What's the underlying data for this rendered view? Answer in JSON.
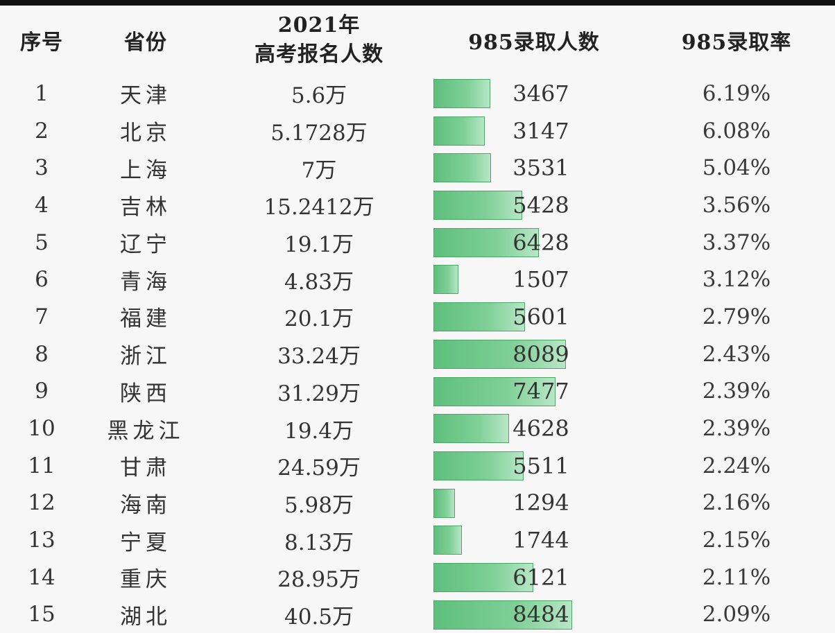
{
  "header": {
    "index": "序号",
    "province": "省份",
    "registrations_line1": "2021年",
    "registrations_line2": "高考报名人数",
    "admitted": "985录取人数",
    "rate": "985录取率"
  },
  "colors": {
    "bar_fill": "#7fd097",
    "bar_border": "#4aa866",
    "top_rule": "#111111"
  },
  "table_data": {
    "bar_max": 8484,
    "rows": [
      {
        "index": "1",
        "province": "天津",
        "registrations": "5.6万",
        "admitted": "3467",
        "admitted_value": 3467,
        "rate": "6.19%"
      },
      {
        "index": "2",
        "province": "北京",
        "registrations": "5.1728万",
        "admitted": "3147",
        "admitted_value": 3147,
        "rate": "6.08%"
      },
      {
        "index": "3",
        "province": "上海",
        "registrations": "7万",
        "admitted": "3531",
        "admitted_value": 3531,
        "rate": "5.04%"
      },
      {
        "index": "4",
        "province": "吉林",
        "registrations": "15.2412万",
        "admitted": "5428",
        "admitted_value": 5428,
        "rate": "3.56%"
      },
      {
        "index": "5",
        "province": "辽宁",
        "registrations": "19.1万",
        "admitted": "6428",
        "admitted_value": 6428,
        "rate": "3.37%"
      },
      {
        "index": "6",
        "province": "青海",
        "registrations": "4.83万",
        "admitted": "1507",
        "admitted_value": 1507,
        "rate": "3.12%"
      },
      {
        "index": "7",
        "province": "福建",
        "registrations": "20.1万",
        "admitted": "5601",
        "admitted_value": 5601,
        "rate": "2.79%"
      },
      {
        "index": "8",
        "province": "浙江",
        "registrations": "33.24万",
        "admitted": "8089",
        "admitted_value": 8089,
        "rate": "2.43%"
      },
      {
        "index": "9",
        "province": "陕西",
        "registrations": "31.29万",
        "admitted": "7477",
        "admitted_value": 7477,
        "rate": "2.39%"
      },
      {
        "index": "10",
        "province": "黑龙江",
        "registrations": "19.4万",
        "admitted": "4628",
        "admitted_value": 4628,
        "rate": "2.39%"
      },
      {
        "index": "11",
        "province": "甘肃",
        "registrations": "24.59万",
        "admitted": "5511",
        "admitted_value": 5511,
        "rate": "2.24%"
      },
      {
        "index": "12",
        "province": "海南",
        "registrations": "5.98万",
        "admitted": "1294",
        "admitted_value": 1294,
        "rate": "2.16%"
      },
      {
        "index": "13",
        "province": "宁夏",
        "registrations": "8.13万",
        "admitted": "1744",
        "admitted_value": 1744,
        "rate": "2.15%"
      },
      {
        "index": "14",
        "province": "重庆",
        "registrations": "28.95万",
        "admitted": "6121",
        "admitted_value": 6121,
        "rate": "2.11%"
      },
      {
        "index": "15",
        "province": "湖北",
        "registrations": "40.5万",
        "admitted": "8484",
        "admitted_value": 8484,
        "rate": "2.09%"
      }
    ]
  }
}
